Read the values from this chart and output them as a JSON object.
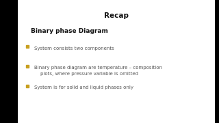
{
  "title": "Recap",
  "subtitle": "Binary phase Diagram",
  "bullets": [
    "System consists two components",
    "Binary phase diagram are temperature – composition\n    plots, where pressure variable is omitted",
    "System is for solid and liquid phases only"
  ],
  "bullet_color": "#c8a020",
  "title_color": "#111111",
  "subtitle_color": "#111111",
  "bullet_text_color": "#555555",
  "bg_color": "#ffffff",
  "outer_bg_color": "#000000",
  "left_bar_width": 0.08,
  "right_bar_width": 0.02,
  "title_fontsize": 7.5,
  "subtitle_fontsize": 6.5,
  "bullet_fontsize": 5.0
}
